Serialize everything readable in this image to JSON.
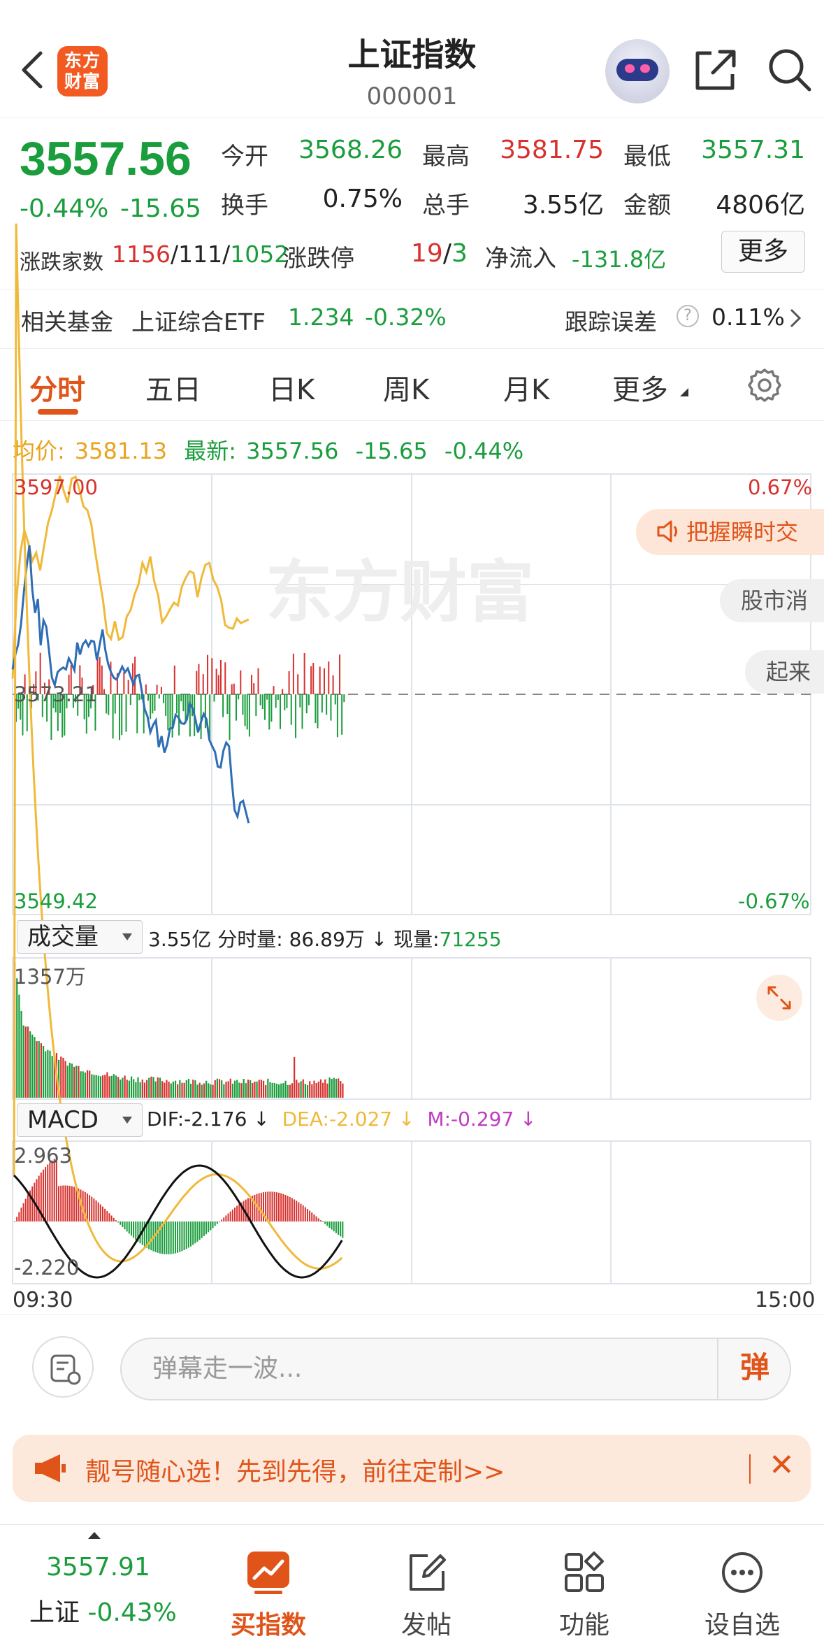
{
  "header": {
    "title": "上证指数",
    "code": "000001",
    "logo_line1": "东方",
    "logo_line2": "财富"
  },
  "quote": {
    "price": "3557.56",
    "change_pct": "-0.44%",
    "change_abs": "-15.65",
    "open_label": "今开",
    "open_value": "3568.26",
    "high_label": "最高",
    "high_value": "3581.75",
    "low_label": "最低",
    "low_value": "3557.31",
    "turnover_label": "换手",
    "turnover_value": "0.75%",
    "volume_label": "总手",
    "volume_value": "3.55亿",
    "amount_label": "金额",
    "amount_value": "4806亿",
    "breadth_label": "涨跌家数",
    "breadth_up": "1156",
    "breadth_flat": "111",
    "breadth_down": "1052",
    "limit_label": "涨跌停",
    "limit_up": "19",
    "limit_down": "3",
    "netflow_label": "净流入",
    "netflow_value": "-131.8亿",
    "more_label": "更多"
  },
  "fund": {
    "label": "相关基金",
    "name": "上证综合ETF",
    "price": "1.234",
    "change": "-0.32%",
    "tracking_label": "跟踪误差",
    "help_icon": "?",
    "tracking_value": "0.11%"
  },
  "tabs": [
    "分时",
    "五日",
    "日K",
    "周K",
    "月K",
    "更多"
  ],
  "price_line": {
    "avg_label": "均价:",
    "avg_value": "3581.13",
    "latest_label": "最新:",
    "latest_value": "3557.56",
    "latest_change": "-15.65",
    "latest_pct": "-0.44%"
  },
  "chart_labels": {
    "top_price": "3597.00",
    "mid_price": "3573.21",
    "bottom_price": "3549.42",
    "top_pct": "0.67%",
    "bottom_pct": "-0.67%",
    "watermark": "东方财富"
  },
  "overlays": {
    "pill_orange": "把握瞬时交",
    "pill_gray_1": "股市消",
    "pill_gray_2": "起来"
  },
  "volume_bar": {
    "select": "成交量",
    "total": "3.55亿",
    "minute_label": "分时量:",
    "minute_value": "86.89万",
    "down_arrow": "↓",
    "current_label": "现量:",
    "current_value": "71255",
    "max_label": "1357万"
  },
  "macd_bar": {
    "select": "MACD",
    "dif": "DIF:-2.176 ↓",
    "dea": "DEA:-2.027 ↓",
    "m": "M:-0.297 ↓",
    "top": "2.963",
    "bottom": "-2.220"
  },
  "time_axis": {
    "start": "09:30",
    "end": "15:00"
  },
  "comment": {
    "placeholder": "弹幕走一波...",
    "dan_label": "弹"
  },
  "banner": {
    "text": "靓号随心选！先到先得，前往定制>>",
    "close": "✕"
  },
  "bottom_nav": {
    "index_value": "3557.91",
    "index_name": "上证",
    "index_pct": "-0.43%",
    "items": [
      "买指数",
      "发帖",
      "功能",
      "设自选"
    ]
  },
  "colors": {
    "up": "#d7312e",
    "down": "#1a9d3c",
    "accent": "#e0541a",
    "avg_line": "#f0b93a",
    "price_line": "#2f6db5"
  },
  "chart_data": {
    "type": "line",
    "title": "上证指数",
    "x_range": [
      "09:30",
      "15:00"
    ],
    "y_range": [
      3549.42,
      3597.0
    ],
    "reference_price": 3573.21,
    "series": [
      {
        "name": "最新",
        "values": [
          3575.9,
          3577.5,
          3578.6,
          3580.8,
          3584.2,
          3587.0,
          3589.3,
          3584.5,
          3582.0,
          3583.5,
          3578.5,
          3581.2,
          3580.5,
          3577.8,
          3575.0,
          3574.2,
          3575.6,
          3575.9,
          3576.1,
          3575.9,
          3577.1,
          3576.5,
          3575.8,
          3578.8,
          3577.5,
          3578.6,
          3579.0,
          3578.4,
          3579.0,
          3578.9,
          3576.9,
          3578.6,
          3580.2,
          3578.0,
          3576.5,
          3575.6,
          3575.0,
          3574.8,
          3575.5,
          3576.2,
          3575.6,
          3576.0,
          3575.1,
          3574.3,
          3575.2,
          3575.3,
          3573.5,
          3571.6,
          3570.8,
          3569.1,
          3569.9,
          3570.4,
          3567.5,
          3568.7,
          3566.9,
          3567.8,
          3569.5,
          3569.6,
          3571.0,
          3570.7,
          3570.1,
          3570.0,
          3570.5,
          3572.2,
          3571.7,
          3570.6,
          3569.1,
          3570.2,
          3571.1,
          3570.5,
          3568.3,
          3567.6,
          3567.0,
          3565.4,
          3565.3,
          3567.1,
          3568.0,
          3567.6,
          3563.8,
          3560.7,
          3560.0,
          3561.5,
          3561.7,
          3560.5,
          3559.3
        ]
      },
      {
        "name": "均价",
        "values": [
          3574.9,
          3583.5,
          3588.6,
          3590.9,
          3589.6,
          3587.6,
          3588.5,
          3586.6,
          3589.2,
          3591.7,
          3593.1,
          3595.0,
          3596.8,
          3595.2,
          3593.9,
          3596.5,
          3596.7,
          3595.3,
          3593.5,
          3593.1,
          3591.6,
          3588.6,
          3585.9,
          3583.3,
          3579.8,
          3579.2,
          3581.1,
          3579.1,
          3579.4,
          3581.6,
          3582.3,
          3584.0,
          3585.1,
          3587.4,
          3586.4,
          3588.1,
          3585.4,
          3583.9,
          3581.0,
          3581.6,
          3582.4,
          3583.1,
          3582.8,
          3584.8,
          3585.8,
          3586.5,
          3586.3,
          3583.7,
          3585.8,
          3587.2,
          3587.4,
          3585.6,
          3584.8,
          3583.4,
          3580.7,
          3580.4,
          3580.3,
          3581.4,
          3580.9,
          3581.1,
          3581.3
        ]
      }
    ]
  }
}
